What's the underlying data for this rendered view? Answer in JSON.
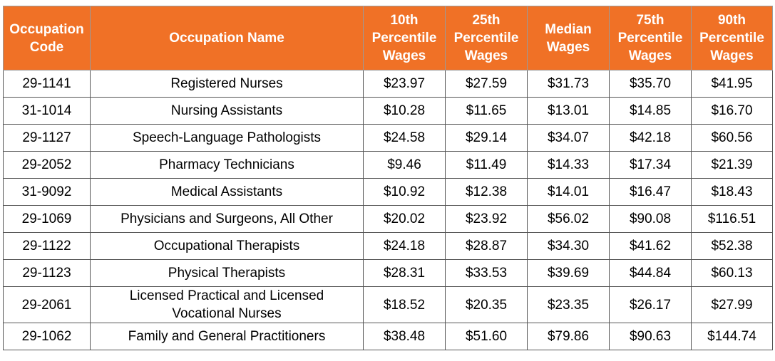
{
  "table": {
    "headers": [
      [
        "Occupation",
        "Code"
      ],
      [
        "Occupation Name"
      ],
      [
        "10th",
        "Percentile",
        "Wages"
      ],
      [
        "25th",
        "Percentile",
        "Wages"
      ],
      [
        "Median",
        "Wages"
      ],
      [
        "75th",
        "Percentile",
        "Wages"
      ],
      [
        "90th",
        "Percentile",
        "Wages"
      ]
    ],
    "rows": [
      {
        "code": "29-1141",
        "name": [
          "Registered Nurses"
        ],
        "p10": "$23.97",
        "p25": "$27.59",
        "median": "$31.73",
        "p75": "$35.70",
        "p90": "$41.95"
      },
      {
        "code": "31-1014",
        "name": [
          "Nursing Assistants"
        ],
        "p10": "$10.28",
        "p25": "$11.65",
        "median": "$13.01",
        "p75": "$14.85",
        "p90": "$16.70"
      },
      {
        "code": "29-1127",
        "name": [
          "Speech-Language Pathologists"
        ],
        "p10": "$24.58",
        "p25": "$29.14",
        "median": "$34.07",
        "p75": "$42.18",
        "p90": "$60.56"
      },
      {
        "code": "29-2052",
        "name": [
          "Pharmacy Technicians"
        ],
        "p10": "$9.46",
        "p25": "$11.49",
        "median": "$14.33",
        "p75": "$17.34",
        "p90": "$21.39"
      },
      {
        "code": "31-9092",
        "name": [
          "Medical Assistants"
        ],
        "p10": "$10.92",
        "p25": "$12.38",
        "median": "$14.01",
        "p75": "$16.47",
        "p90": "$18.43"
      },
      {
        "code": "29-1069",
        "name": [
          "Physicians and Surgeons, All Other"
        ],
        "p10": "$20.02",
        "p25": "$23.92",
        "median": "$56.02",
        "p75": "$90.08",
        "p90": "$116.51"
      },
      {
        "code": "29-1122",
        "name": [
          "Occupational Therapists"
        ],
        "p10": "$24.18",
        "p25": "$28.87",
        "median": "$34.30",
        "p75": "$41.62",
        "p90": "$52.38"
      },
      {
        "code": "29-1123",
        "name": [
          "Physical Therapists"
        ],
        "p10": "$28.31",
        "p25": "$33.53",
        "median": "$39.69",
        "p75": "$44.84",
        "p90": "$60.13"
      },
      {
        "code": "29-2061",
        "name": [
          "Licensed Practical and Licensed",
          "Vocational Nurses"
        ],
        "p10": "$18.52",
        "p25": "$20.35",
        "median": "$23.35",
        "p75": "$26.17",
        "p90": "$27.99"
      },
      {
        "code": "29-1062",
        "name": [
          "Family and General Practitioners"
        ],
        "p10": "$38.48",
        "p25": "$51.60",
        "median": "$79.86",
        "p75": "$90.63",
        "p90": "$144.74"
      }
    ]
  },
  "colors": {
    "header_bg": "#f07126",
    "header_text": "#ffffff"
  }
}
